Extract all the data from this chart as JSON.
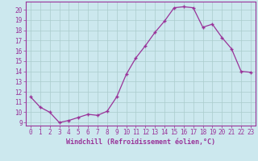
{
  "x": [
    0,
    1,
    2,
    3,
    4,
    5,
    6,
    7,
    8,
    9,
    10,
    11,
    12,
    13,
    14,
    15,
    16,
    17,
    18,
    19,
    20,
    21,
    22,
    23
  ],
  "y": [
    11.5,
    10.5,
    10.0,
    9.0,
    9.2,
    9.5,
    9.8,
    9.7,
    10.1,
    11.5,
    13.7,
    15.3,
    16.5,
    17.8,
    18.9,
    20.2,
    20.3,
    20.2,
    18.3,
    18.6,
    17.3,
    16.2,
    14.0,
    13.9
  ],
  "line_color": "#993399",
  "marker": "+",
  "marker_size": 3,
  "bg_color": "#cce8ee",
  "grid_color": "#aacccc",
  "xlabel": "Windchill (Refroidissement éolien,°C)",
  "ylabel_ticks": [
    9,
    10,
    11,
    12,
    13,
    14,
    15,
    16,
    17,
    18,
    19,
    20
  ],
  "ylim": [
    8.7,
    20.8
  ],
  "xlim": [
    -0.5,
    23.5
  ],
  "tick_color": "#993399",
  "spine_color": "#993399",
  "font_color": "#993399",
  "label_fontsize": 5.5,
  "xlabel_fontsize": 6.0
}
